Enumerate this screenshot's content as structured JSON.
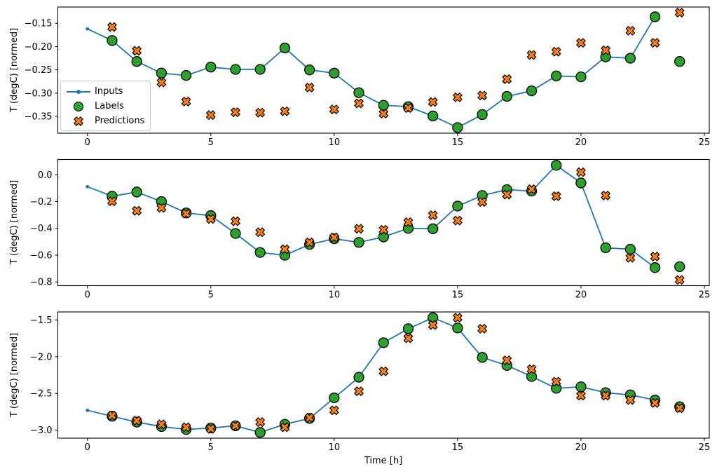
{
  "figure": {
    "xlabel": "Time [h]",
    "ylabel": "T (degC) [normed]"
  },
  "legend": {
    "items": [
      {
        "label": "Inputs",
        "marker": "line-dot-icon",
        "color": "#1f77b4"
      },
      {
        "label": "Labels",
        "marker": "circle-icon",
        "color": "#2ca02c"
      },
      {
        "label": "Predictions",
        "marker": "x-icon",
        "color": "#ff7f0e"
      }
    ]
  },
  "colors": {
    "inputs": "#1f77b4",
    "labels": "#2ca02c",
    "predictions": "#ff7f0e",
    "marker_edge": "#000000",
    "spine": "#000000"
  },
  "chart_data": [
    {
      "type": "line",
      "title": "",
      "xlabel": "",
      "ylabel": "T (degC) [normed]",
      "xlim": [
        -1.2,
        25.2
      ],
      "ylim": [
        -0.386,
        -0.115
      ],
      "xticks": [
        0,
        5,
        10,
        15,
        20,
        25
      ],
      "xtick_labels": [
        "0",
        "5",
        "10",
        "15",
        "20",
        "25"
      ],
      "yticks": [
        -0.15,
        -0.2,
        -0.25,
        -0.3,
        -0.35
      ],
      "ytick_labels": [
        "−0.15",
        "−0.20",
        "−0.25",
        "−0.30",
        "−0.35"
      ],
      "grid": false,
      "series": [
        {
          "name": "Inputs",
          "kind": "line",
          "color": "#1f77b4",
          "x": [
            0,
            1,
            2,
            3,
            4,
            5,
            6,
            7,
            8,
            9,
            10,
            11,
            12,
            13,
            14,
            15,
            16,
            17,
            18,
            19,
            20,
            21,
            22,
            23
          ],
          "y": [
            -0.162,
            -0.187,
            -0.232,
            -0.257,
            -0.262,
            -0.244,
            -0.249,
            -0.249,
            -0.203,
            -0.25,
            -0.257,
            -0.299,
            -0.326,
            -0.329,
            -0.349,
            -0.374,
            -0.346,
            -0.307,
            -0.295,
            -0.263,
            -0.265,
            -0.222,
            -0.225,
            -0.136
          ]
        },
        {
          "name": "Labels",
          "kind": "circle",
          "color": "#2ca02c",
          "x": [
            1,
            2,
            3,
            4,
            5,
            6,
            7,
            8,
            9,
            10,
            11,
            12,
            13,
            14,
            15,
            16,
            17,
            18,
            19,
            20,
            21,
            22,
            23,
            24
          ],
          "y": [
            -0.187,
            -0.232,
            -0.257,
            -0.262,
            -0.244,
            -0.249,
            -0.249,
            -0.203,
            -0.25,
            -0.257,
            -0.299,
            -0.326,
            -0.329,
            -0.349,
            -0.374,
            -0.346,
            -0.307,
            -0.295,
            -0.263,
            -0.265,
            -0.222,
            -0.225,
            -0.136,
            -0.232
          ]
        },
        {
          "name": "Predictions",
          "kind": "x",
          "color": "#ff7f0e",
          "x": [
            1,
            2,
            3,
            4,
            5,
            6,
            7,
            8,
            9,
            10,
            11,
            12,
            13,
            14,
            15,
            16,
            17,
            18,
            19,
            20,
            21,
            22,
            23,
            24
          ],
          "y": [
            -0.158,
            -0.209,
            -0.277,
            -0.318,
            -0.347,
            -0.341,
            -0.342,
            -0.339,
            -0.288,
            -0.335,
            -0.322,
            -0.344,
            -0.332,
            -0.319,
            -0.309,
            -0.305,
            -0.27,
            -0.218,
            -0.211,
            -0.192,
            -0.208,
            -0.166,
            -0.192,
            -0.127
          ]
        }
      ]
    },
    {
      "type": "line",
      "title": "",
      "xlabel": "",
      "ylabel": "T (degC) [normed]",
      "xlim": [
        -1.2,
        25.2
      ],
      "ylim": [
        -0.828,
        0.114
      ],
      "xticks": [
        0,
        5,
        10,
        15,
        20,
        25
      ],
      "xtick_labels": [
        "0",
        "5",
        "10",
        "15",
        "20",
        "25"
      ],
      "yticks": [
        0.0,
        -0.2,
        -0.4,
        -0.6,
        -0.8
      ],
      "ytick_labels": [
        "0.0",
        "−0.2",
        "−0.4",
        "−0.6",
        "−0.8"
      ],
      "grid": false,
      "series": [
        {
          "name": "Inputs",
          "kind": "line",
          "color": "#1f77b4",
          "x": [
            0,
            1,
            2,
            3,
            4,
            5,
            6,
            7,
            8,
            9,
            10,
            11,
            12,
            13,
            14,
            15,
            16,
            17,
            18,
            19,
            20,
            21,
            22,
            23
          ],
          "y": [
            -0.089,
            -0.16,
            -0.129,
            -0.2,
            -0.285,
            -0.305,
            -0.438,
            -0.58,
            -0.601,
            -0.52,
            -0.478,
            -0.505,
            -0.464,
            -0.4,
            -0.403,
            -0.234,
            -0.155,
            -0.111,
            -0.122,
            0.071,
            -0.061,
            -0.545,
            -0.556,
            -0.693
          ]
        },
        {
          "name": "Labels",
          "kind": "circle",
          "color": "#2ca02c",
          "x": [
            1,
            2,
            3,
            4,
            5,
            6,
            7,
            8,
            9,
            10,
            11,
            12,
            13,
            14,
            15,
            16,
            17,
            18,
            19,
            20,
            21,
            22,
            23,
            24
          ],
          "y": [
            -0.16,
            -0.129,
            -0.2,
            -0.285,
            -0.305,
            -0.438,
            -0.58,
            -0.601,
            -0.52,
            -0.478,
            -0.505,
            -0.464,
            -0.4,
            -0.403,
            -0.234,
            -0.155,
            -0.111,
            -0.122,
            0.071,
            -0.061,
            -0.545,
            -0.556,
            -0.693,
            -0.686
          ]
        },
        {
          "name": "Predictions",
          "kind": "x",
          "color": "#ff7f0e",
          "x": [
            1,
            2,
            3,
            4,
            5,
            6,
            7,
            8,
            9,
            10,
            11,
            12,
            13,
            14,
            15,
            16,
            17,
            18,
            19,
            20,
            21,
            22,
            23,
            24
          ],
          "y": [
            -0.198,
            -0.269,
            -0.247,
            -0.29,
            -0.33,
            -0.347,
            -0.429,
            -0.556,
            -0.505,
            -0.468,
            -0.403,
            -0.411,
            -0.354,
            -0.302,
            -0.342,
            -0.203,
            -0.148,
            -0.108,
            -0.16,
            0.019,
            -0.155,
            -0.62,
            -0.611,
            -0.785
          ]
        }
      ]
    },
    {
      "type": "line",
      "title": "",
      "xlabel": "Time [h]",
      "ylabel": "T (degC) [normed]",
      "xlim": [
        -1.2,
        25.2
      ],
      "ylim": [
        -3.108,
        -1.392
      ],
      "xticks": [
        0,
        5,
        10,
        15,
        20,
        25
      ],
      "xtick_labels": [
        "0",
        "5",
        "10",
        "15",
        "20",
        "25"
      ],
      "yticks": [
        -1.5,
        -2.0,
        -2.5,
        -3.0
      ],
      "ytick_labels": [
        "−1.5",
        "−2.0",
        "−2.5",
        "−3.0"
      ],
      "grid": false,
      "series": [
        {
          "name": "Inputs",
          "kind": "line",
          "color": "#1f77b4",
          "x": [
            0,
            1,
            2,
            3,
            4,
            5,
            6,
            7,
            8,
            9,
            10,
            11,
            12,
            13,
            14,
            15,
            16,
            17,
            18,
            19,
            20,
            21,
            22,
            23
          ],
          "y": [
            -2.73,
            -2.81,
            -2.89,
            -2.95,
            -2.99,
            -2.97,
            -2.94,
            -3.03,
            -2.92,
            -2.84,
            -2.56,
            -2.28,
            -1.81,
            -1.62,
            -1.47,
            -1.61,
            -2.01,
            -2.12,
            -2.27,
            -2.43,
            -2.41,
            -2.49,
            -2.52,
            -2.59
          ]
        },
        {
          "name": "Labels",
          "kind": "circle",
          "color": "#2ca02c",
          "x": [
            1,
            2,
            3,
            4,
            5,
            6,
            7,
            8,
            9,
            10,
            11,
            12,
            13,
            14,
            15,
            16,
            17,
            18,
            19,
            20,
            21,
            22,
            23,
            24
          ],
          "y": [
            -2.81,
            -2.89,
            -2.95,
            -2.99,
            -2.97,
            -2.94,
            -3.03,
            -2.92,
            -2.84,
            -2.56,
            -2.28,
            -1.81,
            -1.62,
            -1.47,
            -1.61,
            -2.01,
            -2.12,
            -2.27,
            -2.43,
            -2.41,
            -2.49,
            -2.52,
            -2.59,
            -2.68
          ]
        },
        {
          "name": "Predictions",
          "kind": "x",
          "color": "#ff7f0e",
          "x": [
            1,
            2,
            3,
            4,
            5,
            6,
            7,
            8,
            9,
            10,
            11,
            12,
            13,
            14,
            15,
            16,
            17,
            18,
            19,
            20,
            21,
            22,
            23,
            24
          ],
          "y": [
            -2.8,
            -2.87,
            -2.92,
            -2.96,
            -2.98,
            -2.94,
            -2.89,
            -2.96,
            -2.83,
            -2.73,
            -2.47,
            -2.2,
            -1.75,
            -1.57,
            -1.47,
            -1.62,
            -2.05,
            -2.17,
            -2.34,
            -2.53,
            -2.53,
            -2.59,
            -2.63,
            -2.7
          ]
        }
      ]
    }
  ]
}
